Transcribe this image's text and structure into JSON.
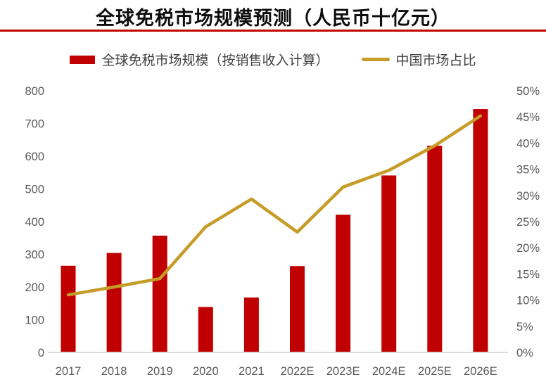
{
  "header": {
    "title": "全球免税市场规模预测（人民币十亿元）"
  },
  "legend": {
    "bar_label": "全球免税市场规模（按销售收入计算）",
    "line_label": "中国市场占比"
  },
  "colors": {
    "bar": "#c00000",
    "line": "#c69c27",
    "rule": "#c00000",
    "axis_text": "#595959",
    "baseline": "#d9d9d9",
    "title_text": "#0d0d0d",
    "legend_text": "#404040"
  },
  "chart_data": {
    "type": "bar",
    "subtype": "bar-line-combo",
    "title": "全球免税市场规模预测（人民币十亿元）",
    "categories": [
      "2017",
      "2018",
      "2019",
      "2020",
      "2021",
      "2022E",
      "2023E",
      "2024E",
      "2025E",
      "2026E"
    ],
    "series": [
      {
        "name": "全球免税市场规模（按销售收入计算）",
        "type": "bar",
        "axis": "left",
        "unit": "人民币十亿元",
        "values": [
          265,
          304,
          357,
          139,
          168,
          264,
          421,
          541,
          632,
          744
        ]
      },
      {
        "name": "中国市场占比",
        "type": "line",
        "axis": "right",
        "unit": "%",
        "values": [
          11.0,
          12.5,
          14.1,
          24.0,
          29.3,
          23.0,
          31.6,
          34.8,
          39.5,
          45.2
        ]
      }
    ],
    "left_axis": {
      "min": 0,
      "max": 800,
      "step": 100,
      "tick_labels": [
        "0",
        "100",
        "200",
        "300",
        "400",
        "500",
        "600",
        "700",
        "800"
      ]
    },
    "right_axis": {
      "min": 0,
      "max": 50,
      "step": 5,
      "tick_labels": [
        "0%",
        "5%",
        "10%",
        "15%",
        "20%",
        "25%",
        "30%",
        "35%",
        "40%",
        "45%",
        "50%"
      ]
    },
    "grid": false,
    "legend_position": "top"
  }
}
